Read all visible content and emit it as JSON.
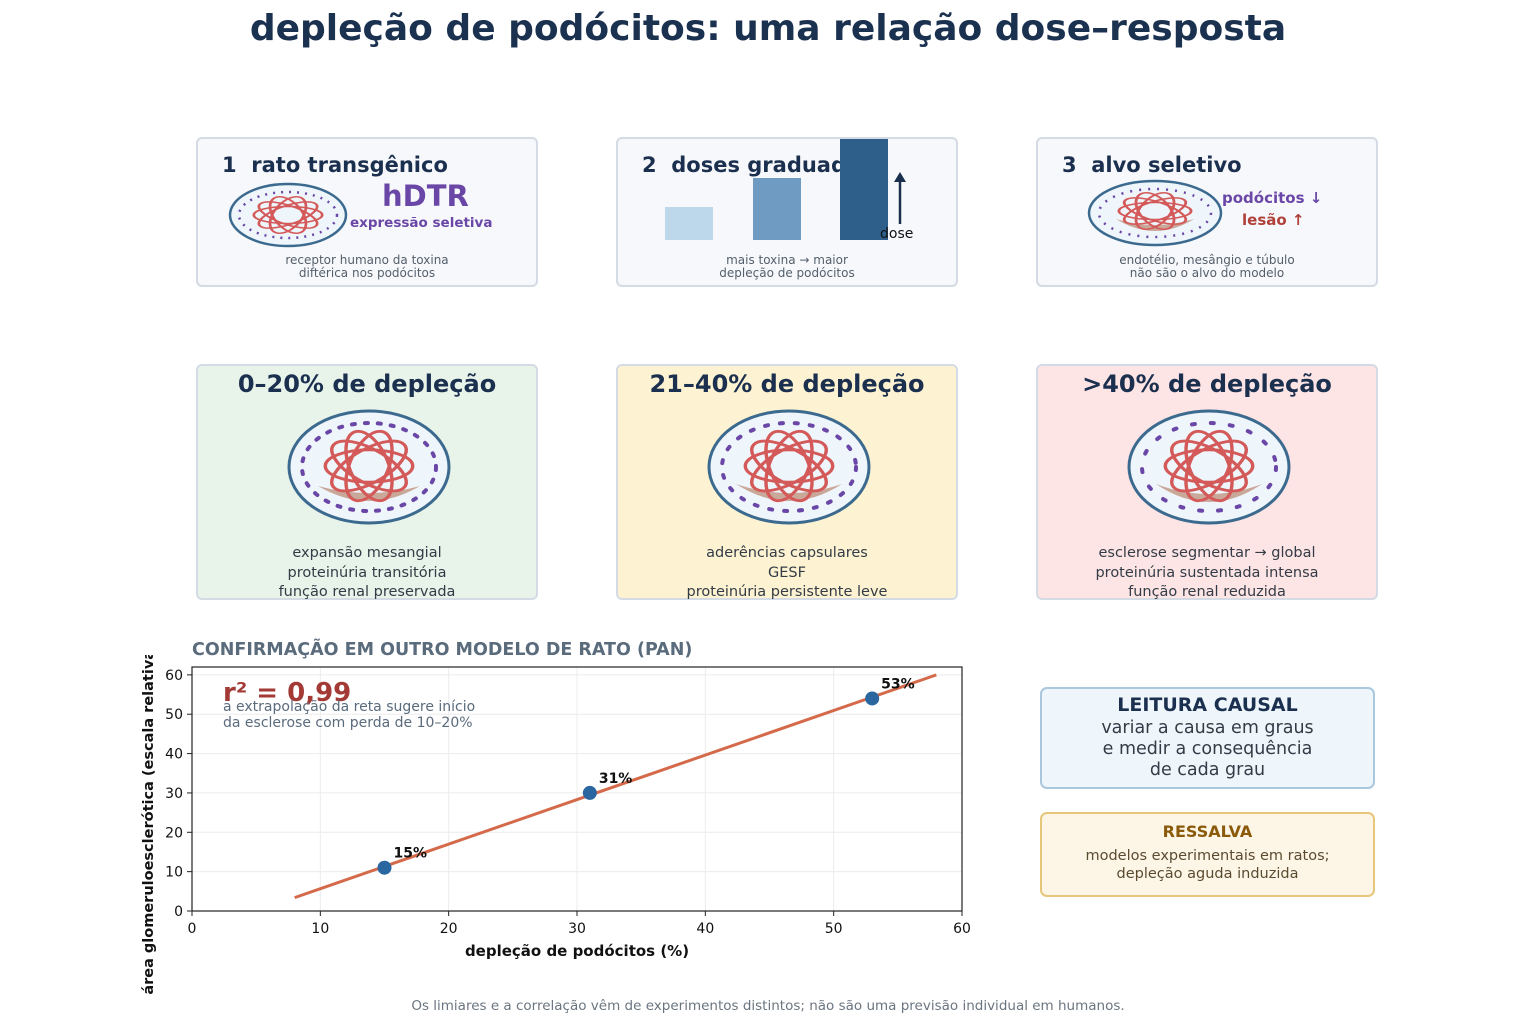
{
  "title": "depleção de podócitos: uma relação dose–resposta",
  "steps": [
    {
      "number": "1",
      "heading": "rato transgênico",
      "label": "hDTR",
      "sublabel": "expressão seletiva",
      "caption": [
        "receptor humano da toxina",
        "diftérica nos podócitos"
      ]
    },
    {
      "number": "2",
      "heading": "doses graduadas",
      "arrow_label": "dose",
      "dose_levels": [
        1,
        2,
        3
      ],
      "caption": [
        "mais toxina → maior",
        "depleção de podócitos"
      ]
    },
    {
      "number": "3",
      "heading": "alvo seletivo",
      "effect_podocytes": "podócitos ↓",
      "effect_injury": "lesão ↑",
      "caption": [
        "endotélio, mesângio e túbulo",
        "não são o alvo do modelo"
      ]
    }
  ],
  "stages": [
    {
      "heading": "0–20% de depleção",
      "background": "#e8f3ea",
      "effects": [
        "expansão mesangial",
        "proteinúria transitória",
        "função renal preservada"
      ]
    },
    {
      "heading": "21–40% de depleção",
      "background": "#fdf3d2",
      "effects": [
        "aderências capsulares",
        "GESF",
        "proteinúria persistente leve"
      ]
    },
    {
      "heading": ">40% de depleção",
      "background": "#fde4e5",
      "effects": [
        "esclerose segmentar → global",
        "proteinúria sustentada intensa",
        "função renal reduzida"
      ]
    }
  ],
  "chart_title": "CONFIRMAÇÃO EM OUTRO MODELO DE RATO (PAN)",
  "chart_data": {
    "type": "scatter",
    "xlabel": "depleção de podócitos (%)",
    "ylabel": "área glomeruloesclerótica (escala relativa)",
    "xlim": [
      0,
      60
    ],
    "ylim": [
      0,
      62
    ],
    "xticks": [
      0,
      10,
      20,
      30,
      40,
      50,
      60
    ],
    "yticks": [
      0,
      10,
      20,
      30,
      40,
      50,
      60
    ],
    "grid": true,
    "points": [
      {
        "x": 15,
        "y": 11,
        "label": "15%"
      },
      {
        "x": 31,
        "y": 30,
        "label": "31%"
      },
      {
        "x": 53,
        "y": 54,
        "label": "53%"
      }
    ],
    "fit_line": {
      "x": [
        8,
        58
      ],
      "y": [
        3.4,
        60
      ]
    },
    "r2_text": "r² = 0,99",
    "annotation": [
      "a extrapolação da reta sugere início",
      "da esclerose com perda de 10–20%"
    ],
    "colors": {
      "points": "#2a66a0",
      "line": "#d46a4a",
      "r2": "#a33a36"
    }
  },
  "causal_box": {
    "heading": "LEITURA CAUSAL",
    "lines": [
      "variar a causa em graus",
      "e medir a consequência",
      "de cada grau"
    ]
  },
  "caveat_box": {
    "heading": "RESSALVA",
    "lines": [
      "modelos experimentais em ratos;",
      "depleção aguda induzida"
    ]
  },
  "footnote": "Os limiares e a correlação vêm de experimentos distintos; não são uma previsão individual em humanos."
}
